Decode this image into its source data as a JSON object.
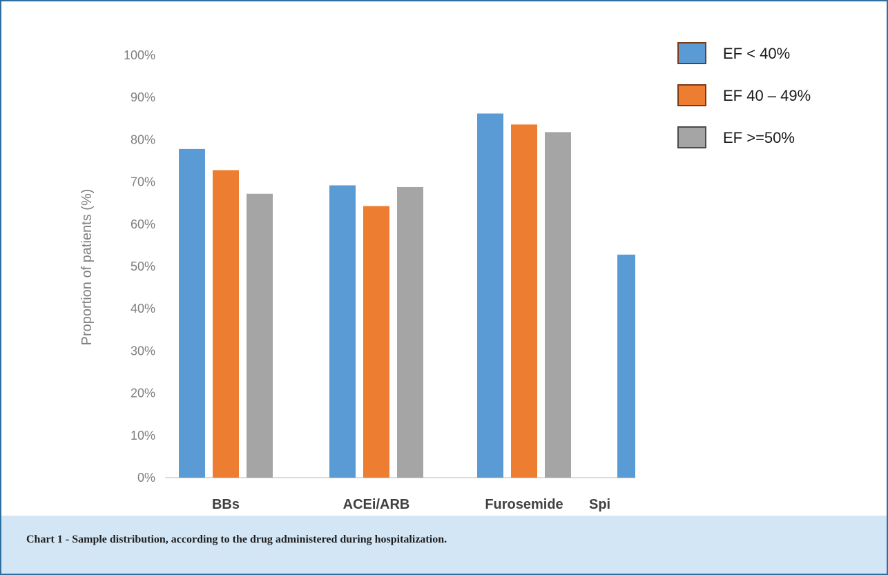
{
  "caption": "Chart 1 - Sample distribution, according to the drug administered during hospitalization.",
  "chart_data": {
    "type": "bar",
    "categories": [
      "BBs",
      "ACEi/ARB",
      "Furosemide",
      "Spi"
    ],
    "series": [
      {
        "name": "EF < 40%",
        "color": "#5b9bd5",
        "values": [
          77.8,
          69.2,
          86.2,
          52.8
        ]
      },
      {
        "name": "EF 40 – 49%",
        "color": "#ed7d31",
        "values": [
          72.8,
          64.3,
          83.6,
          null
        ]
      },
      {
        "name": "EF >=50%",
        "color": "#a5a5a5",
        "values": [
          67.2,
          68.8,
          81.8,
          null
        ]
      }
    ],
    "ylabel": "Proportion of patients (%)",
    "yticks": [
      "0%",
      "10%",
      "20%",
      "30%",
      "40%",
      "50%",
      "60%",
      "70%",
      "80%",
      "90%",
      "100%"
    ],
    "ylim": [
      0,
      100
    ],
    "grid": false,
    "legend_position": "top-right"
  }
}
